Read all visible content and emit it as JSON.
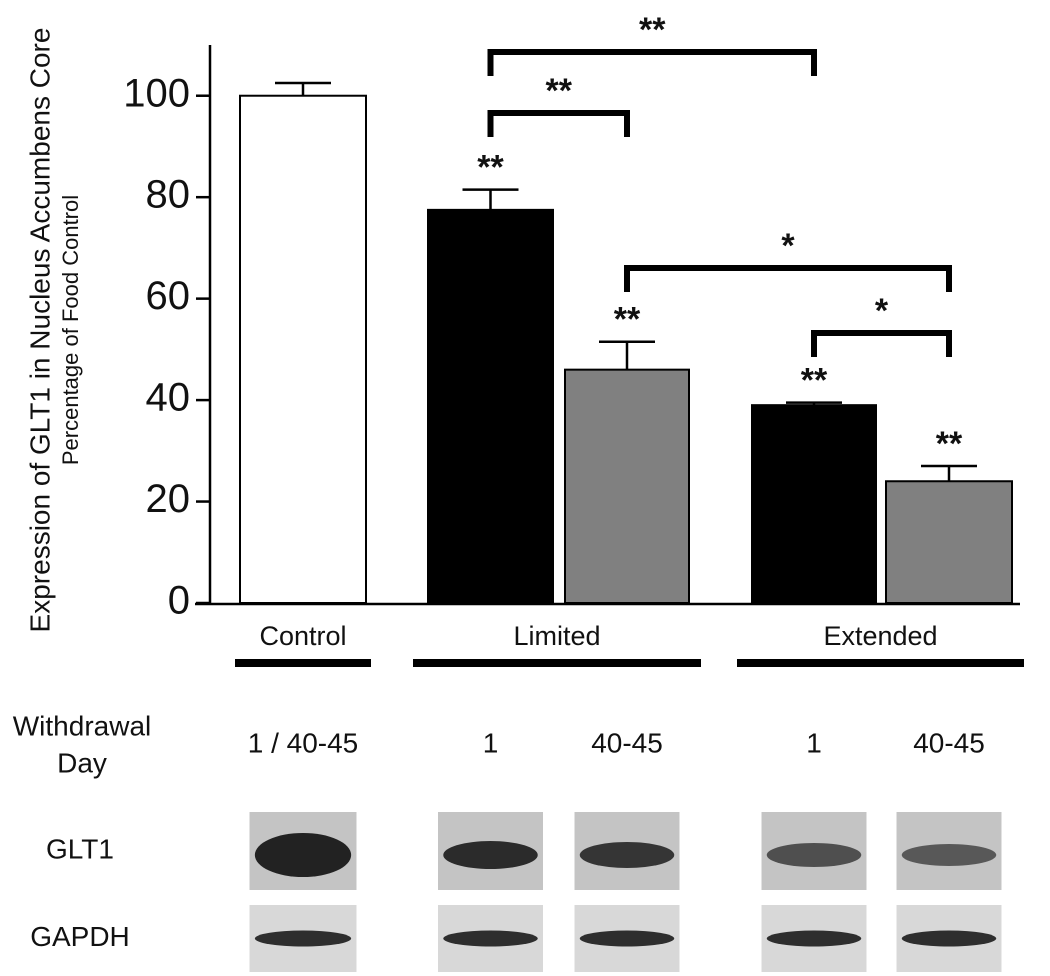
{
  "chart_data": {
    "type": "bar",
    "y_title": "Expression of GLT1 in Nucleus Accumbens Core",
    "y_subtitle": "Percentage of Food Control",
    "categories": [
      "1 / 40-45",
      "1",
      "40-45",
      "1",
      "40-45"
    ],
    "category_row_label": [
      "Withdrawal",
      "Day"
    ],
    "values": [
      100,
      77.5,
      46,
      39,
      24
    ],
    "errors": [
      2.5,
      4,
      5.5,
      0.5,
      3
    ],
    "colors": [
      "#ffffff",
      "#000000",
      "#808080",
      "#000000",
      "#808080"
    ],
    "significance": [
      null,
      "**",
      "**",
      "**",
      "**"
    ],
    "groups": [
      {
        "label": "Control",
        "from": 0,
        "to": 0
      },
      {
        "label": "Limited",
        "from": 1,
        "to": 2
      },
      {
        "label": "Extended",
        "from": 3,
        "to": 4
      }
    ],
    "comparisons": [
      {
        "from": 1,
        "to": 3,
        "text": "**"
      },
      {
        "from": 1,
        "to": 2,
        "text": "**"
      },
      {
        "from": 2,
        "to": 4,
        "text": "*"
      },
      {
        "from": 3,
        "to": 4,
        "text": "*"
      }
    ],
    "blot_rows": [
      "GLT1",
      "GAPDH"
    ],
    "ylim": [
      0,
      110
    ],
    "yticks": [
      0,
      20,
      40,
      60,
      80,
      100
    ]
  }
}
